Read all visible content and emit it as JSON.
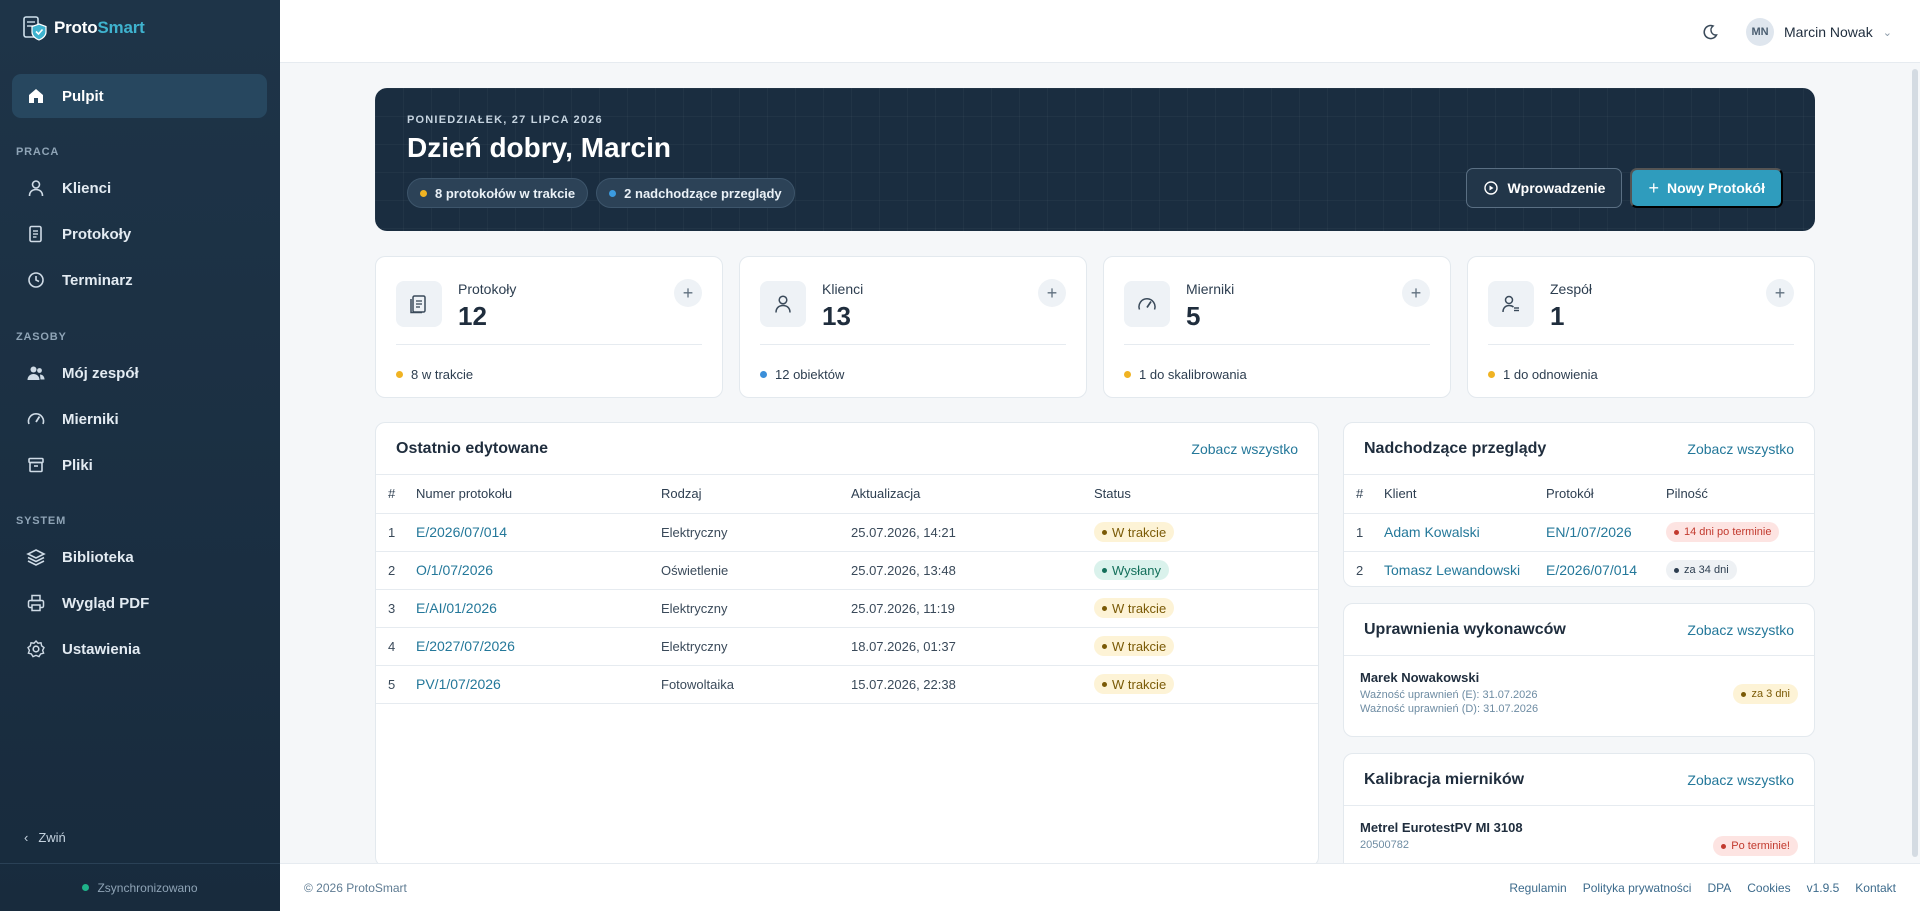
{
  "app": {
    "brand_prefix": "Proto",
    "brand_suffix": "Smart"
  },
  "sidebar": {
    "active": {
      "label": "Pulpit",
      "icon": "home-icon"
    },
    "sections": [
      {
        "title": "PRACA",
        "items": [
          {
            "label": "Klienci",
            "icon": "user-icon"
          },
          {
            "label": "Protokoły",
            "icon": "document-icon"
          },
          {
            "label": "Terminarz",
            "icon": "clock-icon"
          }
        ]
      },
      {
        "title": "ZASOBY",
        "items": [
          {
            "label": "Mój zespół",
            "icon": "team-icon"
          },
          {
            "label": "Mierniki",
            "icon": "gauge-icon"
          },
          {
            "label": "Pliki",
            "icon": "archive-icon"
          }
        ]
      },
      {
        "title": "SYSTEM",
        "items": [
          {
            "label": "Biblioteka",
            "icon": "layers-icon"
          },
          {
            "label": "Wygląd PDF",
            "icon": "printer-icon"
          },
          {
            "label": "Ustawienia",
            "icon": "gear-icon"
          }
        ]
      }
    ],
    "collapse_label": "Zwiń",
    "sync_status": "Zsynchronizowano",
    "sync_color": "#1fb38a"
  },
  "topbar": {
    "user_initials": "MN",
    "user_name": "Marcin Nowak"
  },
  "hero": {
    "date": "PONIEDZIAŁEK, 27 LIPCA 2026",
    "greeting": "Dzień dobry, Marcin",
    "pills": [
      {
        "text": "8 protokołów w trakcie",
        "color": "#f0b323"
      },
      {
        "text": "2 nadchodzące przeglądy",
        "color": "#3b9be0"
      }
    ],
    "intro_button": "Wprowadzenie",
    "new_button": "Nowy Protokół"
  },
  "stats": [
    {
      "label": "Protokoły",
      "value": "12",
      "foot": "8 w trakcie",
      "dot": "#f0b323",
      "icon": "document-icon"
    },
    {
      "label": "Klienci",
      "value": "13",
      "foot": "12 obiektów",
      "dot": "#3b8fd9",
      "icon": "user-icon"
    },
    {
      "label": "Mierniki",
      "value": "5",
      "foot": "1 do skalibrowania",
      "dot": "#f0b323",
      "icon": "gauge-icon"
    },
    {
      "label": "Zespół",
      "value": "1",
      "foot": "1 do odnowienia",
      "dot": "#f0b323",
      "icon": "user-list-icon"
    }
  ],
  "recent": {
    "title": "Ostatnio edytowane",
    "link": "Zobacz wszystko",
    "headers": [
      "#",
      "Numer protokołu",
      "Rodzaj",
      "Aktualizacja",
      "Status"
    ],
    "rows": [
      {
        "n": "1",
        "num": "E/2026/07/014",
        "type": "Elektryczny",
        "updated": "25.07.2026, 14:21",
        "status": "W trakcie",
        "kind": "yellow"
      },
      {
        "n": "2",
        "num": "O/1/07/2026",
        "type": "Oświetlenie",
        "updated": "25.07.2026, 13:48",
        "status": "Wysłany",
        "kind": "green"
      },
      {
        "n": "3",
        "num": "E/AI/01/2026",
        "type": "Elektryczny",
        "updated": "25.07.2026, 11:19",
        "status": "W trakcie",
        "kind": "yellow"
      },
      {
        "n": "4",
        "num": "E/2027/07/2026",
        "type": "Elektryczny",
        "updated": "18.07.2026, 01:37",
        "status": "W trakcie",
        "kind": "yellow"
      },
      {
        "n": "5",
        "num": "PV/1/07/2026",
        "type": "Fotowoltaika",
        "updated": "15.07.2026, 22:38",
        "status": "W trakcie",
        "kind": "yellow"
      }
    ]
  },
  "upcoming": {
    "title": "Nadchodzące przeglądy",
    "link": "Zobacz wszystko",
    "headers": [
      "#",
      "Klient",
      "Protokół",
      "Pilność"
    ],
    "rows": [
      {
        "n": "1",
        "client": "Adam Kowalski",
        "protocol": "EN/1/07/2026",
        "urgency": "14 dni po terminie",
        "kind": "red"
      },
      {
        "n": "2",
        "client": "Tomasz Lewandowski",
        "protocol": "E/2026/07/014",
        "urgency": "za 34 dni",
        "kind": "gray"
      }
    ]
  },
  "permissions": {
    "title": "Uprawnienia wykonawców",
    "link": "Zobacz wszystko",
    "name": "Marek Nowakowski",
    "line1": "Ważność uprawnień (E): 31.07.2026",
    "line2": "Ważność uprawnień (D): 31.07.2026",
    "badge": "za 3 dni"
  },
  "calibration": {
    "title": "Kalibracja mierników",
    "link": "Zobacz wszystko",
    "name": "Metrel EurotestPV MI 3108",
    "serial": "20500782",
    "badge": "Po terminie!"
  },
  "footer": {
    "copyright": "© 2026 ProtoSmart",
    "links": [
      "Regulamin",
      "Polityka prywatności",
      "DPA",
      "Cookies",
      "v1.9.5",
      "Kontakt"
    ]
  }
}
